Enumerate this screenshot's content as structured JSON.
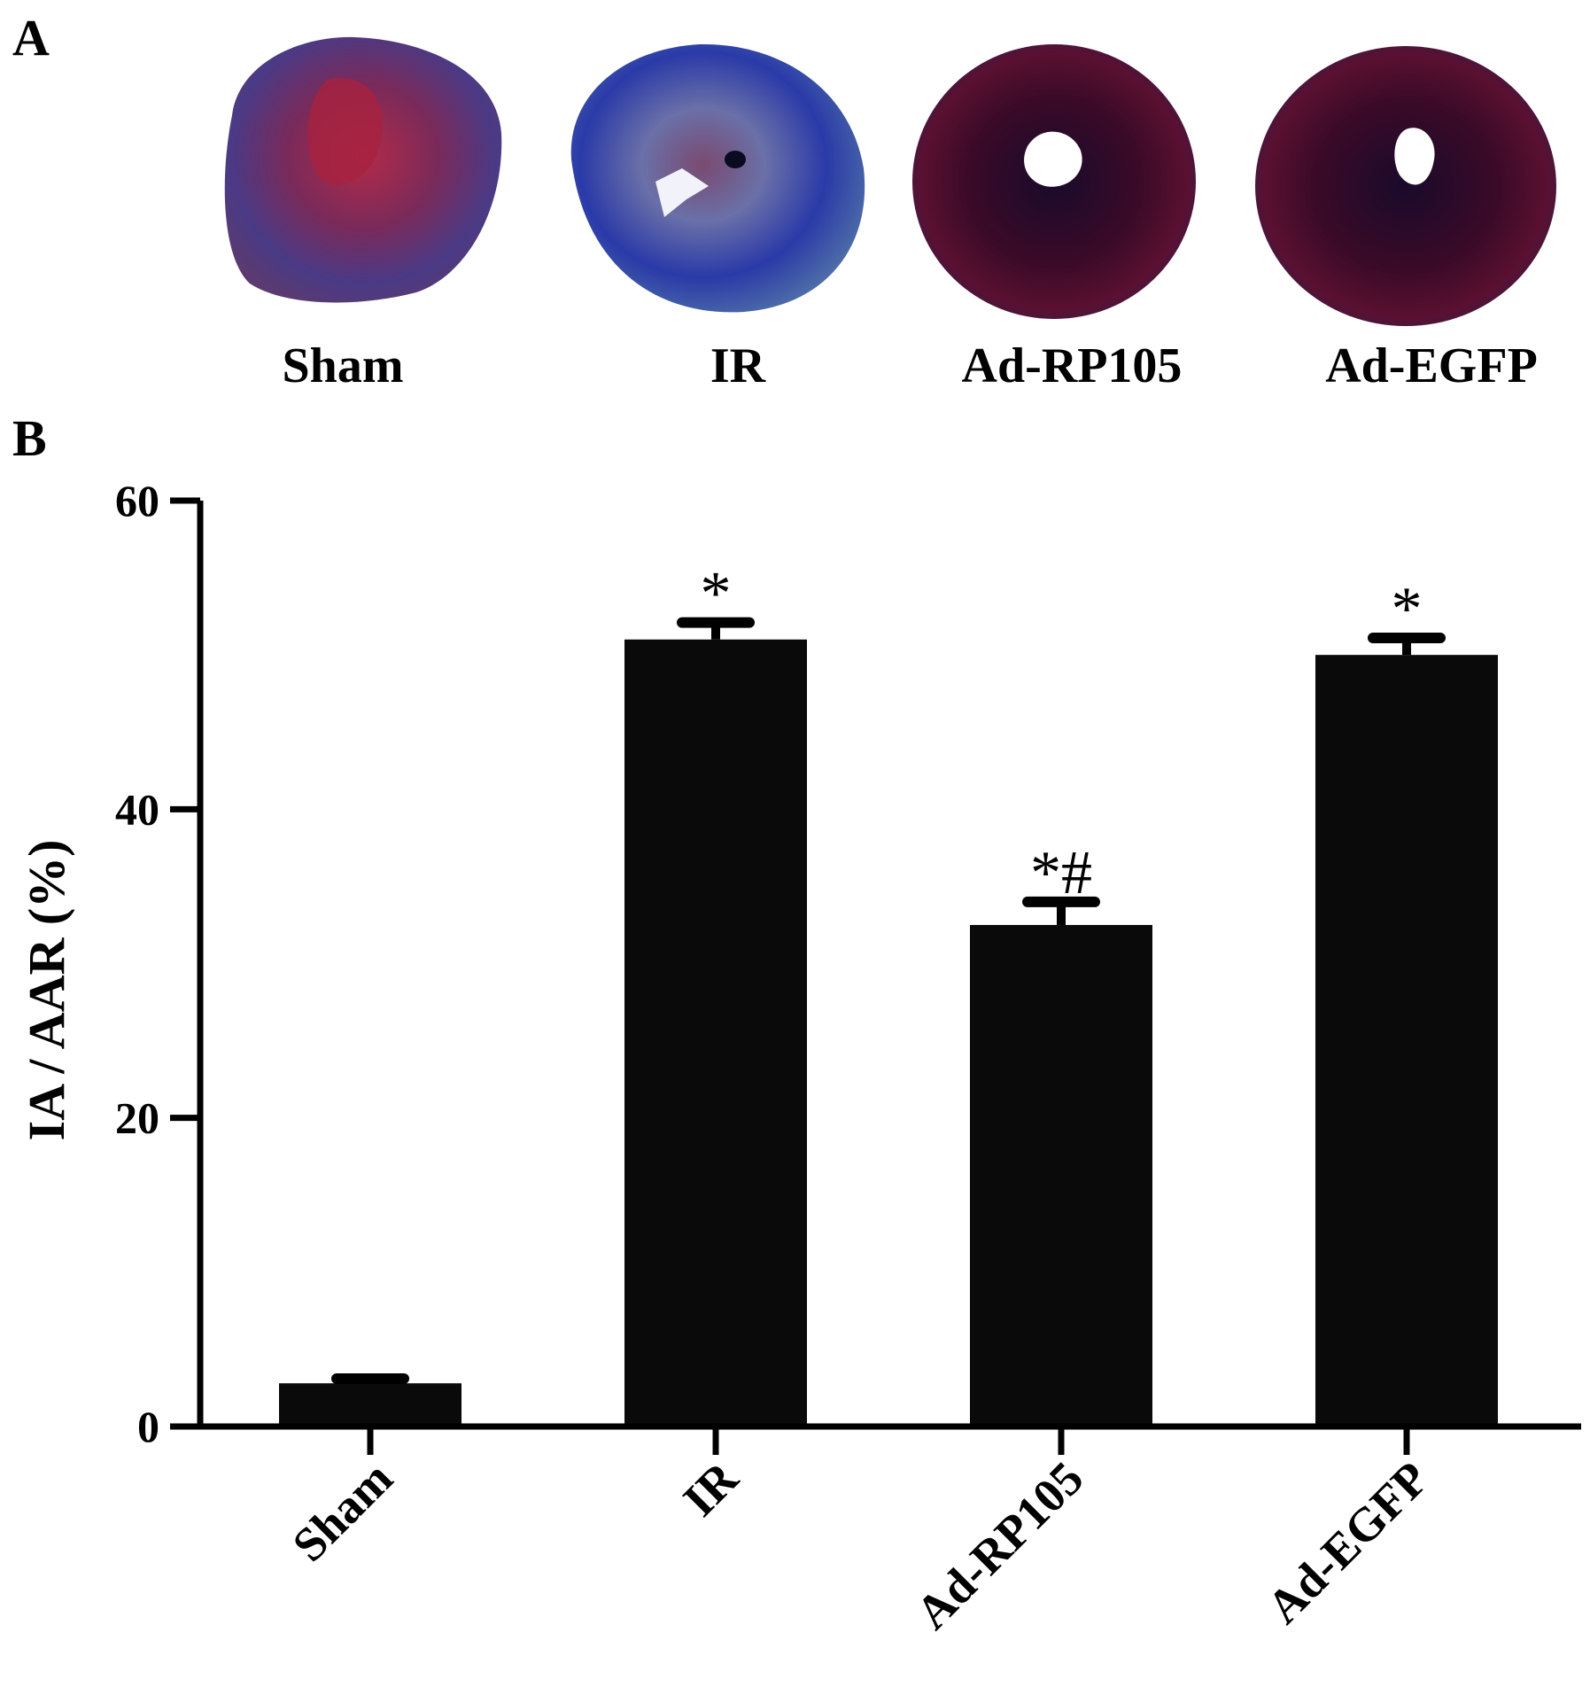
{
  "panels": {
    "a": "A",
    "b": "B"
  },
  "slices": [
    {
      "label": "Sham",
      "stain": "mixed-red-blue"
    },
    {
      "label": "IR",
      "stain": "blue-pale"
    },
    {
      "label": "Ad-RP105",
      "stain": "dark-red"
    },
    {
      "label": "Ad-EGFP",
      "stain": "dark-red"
    }
  ],
  "chart_data": {
    "type": "bar",
    "categories": [
      "Sham",
      "IR",
      "Ad-RP105",
      "Ad-EGFP"
    ],
    "values": [
      2.8,
      51.0,
      32.5,
      50.0
    ],
    "errors": [
      0.3,
      1.1,
      1.5,
      1.1
    ],
    "annotations": [
      "",
      "*",
      "*#",
      "*"
    ],
    "ylabel": "IA / AAR (%)",
    "xlabel": "",
    "ylim": [
      0,
      60
    ],
    "yticks": [
      0,
      20,
      40,
      60
    ],
    "bar_color": "#0a0a0a",
    "grid": false,
    "legend": "none",
    "xtick_rotation": -45
  }
}
